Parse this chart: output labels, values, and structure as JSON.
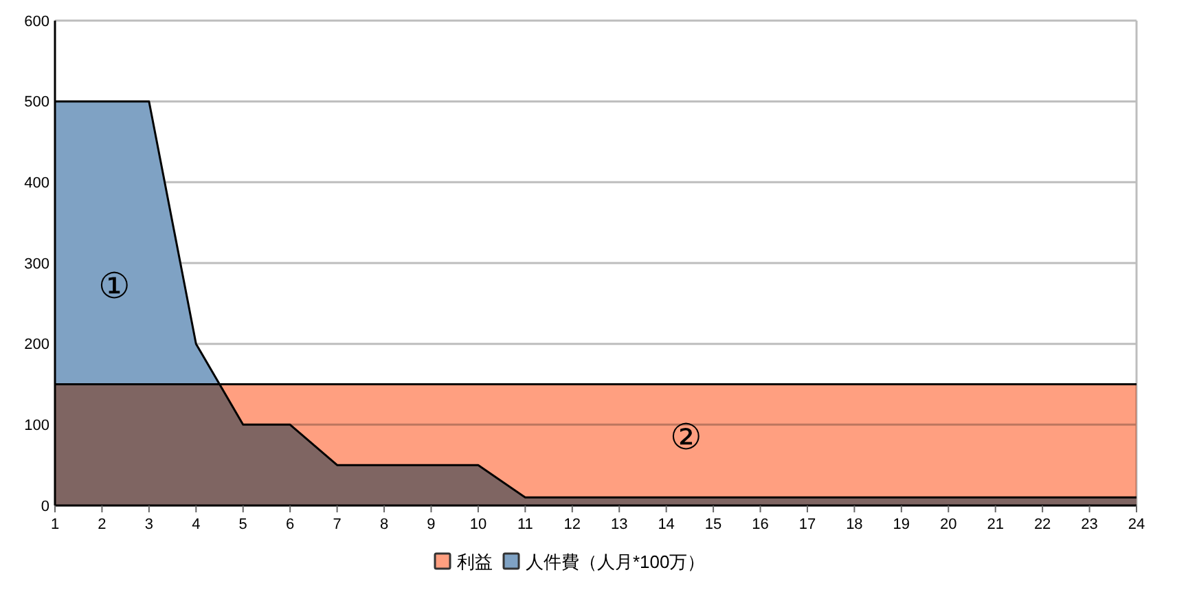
{
  "chart_data": {
    "type": "area",
    "x": [
      1,
      2,
      3,
      4,
      5,
      6,
      7,
      8,
      9,
      10,
      11,
      12,
      13,
      14,
      15,
      16,
      17,
      18,
      19,
      20,
      21,
      22,
      23,
      24
    ],
    "series": [
      {
        "name": "利益",
        "color": "#ff9f80",
        "values": [
          150,
          150,
          150,
          150,
          150,
          150,
          150,
          150,
          150,
          150,
          150,
          150,
          150,
          150,
          150,
          150,
          150,
          150,
          150,
          150,
          150,
          150,
          150,
          150
        ]
      },
      {
        "name": "人件費（人月*100万）",
        "color": "#7fa2c4",
        "values": [
          500,
          500,
          500,
          200,
          100,
          100,
          50,
          50,
          50,
          50,
          10,
          10,
          10,
          10,
          10,
          10,
          10,
          10,
          10,
          10,
          10,
          10,
          10,
          10
        ]
      }
    ],
    "xlim": [
      1,
      24
    ],
    "xticks": [
      1,
      2,
      3,
      4,
      5,
      6,
      7,
      8,
      9,
      10,
      11,
      12,
      13,
      14,
      15,
      16,
      17,
      18,
      19,
      20,
      21,
      22,
      23,
      24
    ],
    "ylim": [
      0,
      600
    ],
    "yticks": [
      0,
      100,
      200,
      300,
      400,
      500,
      600
    ],
    "grid": "y",
    "legend": "bottom",
    "annotations": [
      "①",
      "②"
    ]
  }
}
